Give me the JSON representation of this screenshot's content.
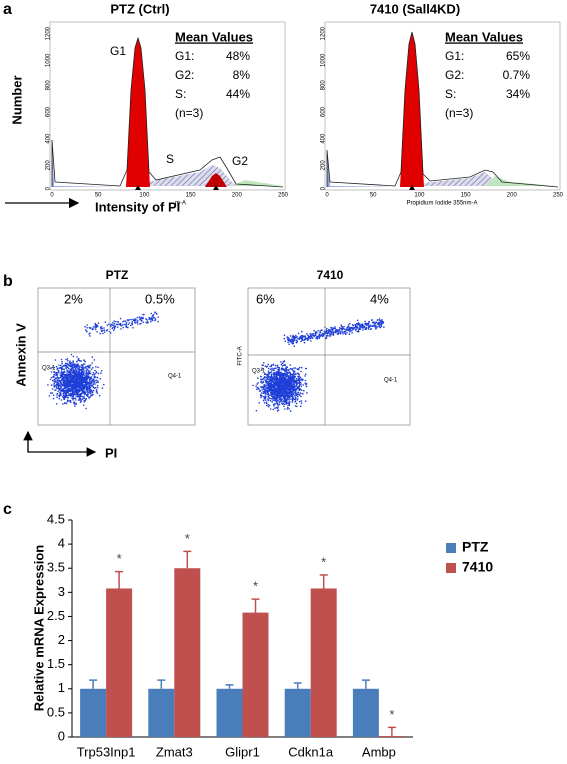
{
  "figure": {
    "a": {
      "label": "a",
      "left": {
        "title": "PTZ (Ctrl)",
        "heading": "Mean Values",
        "rows": [
          [
            "G1:",
            "48%"
          ],
          [
            "G2:",
            "8%"
          ],
          [
            "S:",
            "44%"
          ]
        ],
        "note": "(n=3)",
        "peaks": [
          "G1",
          "S",
          "G2"
        ],
        "ylabel": "Number",
        "xlabel": "Intensity of PI",
        "axis_label": "m-A",
        "xticks": [
          0,
          50,
          100,
          150,
          200,
          250
        ],
        "yticks": [
          0,
          200,
          400,
          600,
          800,
          1000,
          1200
        ]
      },
      "right": {
        "title": "7410 (Sall4KD)",
        "heading": "Mean Values",
        "rows": [
          [
            "G1:",
            "65%"
          ],
          [
            "G2:",
            "0.7%"
          ],
          [
            "S:",
            "34%"
          ]
        ],
        "note": "(n=3)",
        "axis_label": "Propidium Iodide 355nm-A",
        "xticks": [
          0,
          50,
          100,
          150,
          200,
          250
        ],
        "yticks": [
          0,
          200,
          400,
          600,
          800,
          1000,
          1200
        ]
      }
    },
    "b": {
      "label": "b",
      "ylabel": "Annexin V",
      "xlabel": "PI",
      "left": {
        "title": "PTZ",
        "upper_left": "2%",
        "upper_right": "0.5%",
        "q3": "Q3-1",
        "q4": "Q4-1"
      },
      "right": {
        "title": "7410",
        "upper_left": "6%",
        "upper_right": "4%",
        "q3": "Q3-1",
        "q4": "Q4-1",
        "axis_label": "FITC-A"
      }
    },
    "c": {
      "label": "c"
    }
  },
  "chart_data": {
    "type": "bar",
    "ylabel": "Relative mRNA Expression",
    "categories": [
      "Trp53Inp1",
      "Zmat3",
      "Glipr1",
      "Cdkn1a",
      "Ambp"
    ],
    "series": [
      {
        "name": "PTZ",
        "color": "#4a7ebb",
        "values": [
          1,
          1,
          1,
          1,
          1
        ],
        "errors": [
          0.18,
          0.18,
          0.08,
          0.12,
          0.18
        ]
      },
      {
        "name": "7410",
        "color": "#c0504d",
        "values": [
          3.08,
          3.5,
          2.58,
          3.08,
          0.02
        ],
        "errors": [
          0.35,
          0.35,
          0.28,
          0.28,
          0.18
        ],
        "annotations": [
          "*",
          "*",
          "*",
          "*",
          "*"
        ]
      }
    ],
    "ylim": [
      0,
      4.5
    ],
    "yticks": [
      0,
      0.5,
      1,
      1.5,
      2,
      2.5,
      3,
      3.5,
      4,
      4.5
    ],
    "legend": "upper right"
  }
}
